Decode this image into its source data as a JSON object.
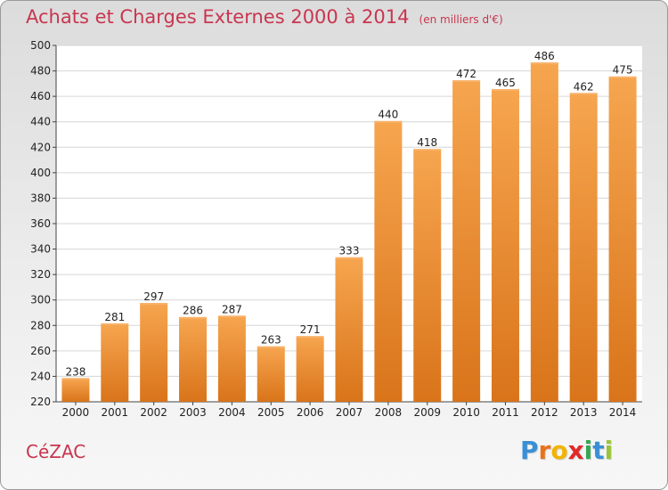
{
  "title": "Achats et Charges Externes 2000 à 2014",
  "unit": "(en milliers d'€)",
  "location": "CéZAC",
  "logo": {
    "letters": [
      "P",
      "r",
      "o",
      "x",
      "i",
      "t",
      "i"
    ],
    "colors": [
      "#3a8fd6",
      "#e8731c",
      "#f2b400",
      "#e02a2a",
      "#36a852",
      "#3a8fd6",
      "#9bc43a"
    ]
  },
  "colors": {
    "bar_light": "#f6a54f",
    "bar_dark": "#d9741a",
    "title": "#c8364f"
  },
  "chart_data": {
    "type": "bar",
    "categories": [
      "2000",
      "2001",
      "2002",
      "2003",
      "2004",
      "2005",
      "2006",
      "2007",
      "2008",
      "2009",
      "2010",
      "2011",
      "2012",
      "2013",
      "2014"
    ],
    "values": [
      238,
      281,
      297,
      286,
      287,
      263,
      271,
      333,
      440,
      418,
      472,
      465,
      486,
      462,
      475
    ],
    "ylim": [
      220,
      500
    ],
    "yticks": [
      220,
      240,
      260,
      280,
      300,
      320,
      340,
      360,
      380,
      400,
      420,
      440,
      460,
      480,
      500
    ],
    "grid": true,
    "xlabel": "",
    "ylabel": ""
  }
}
